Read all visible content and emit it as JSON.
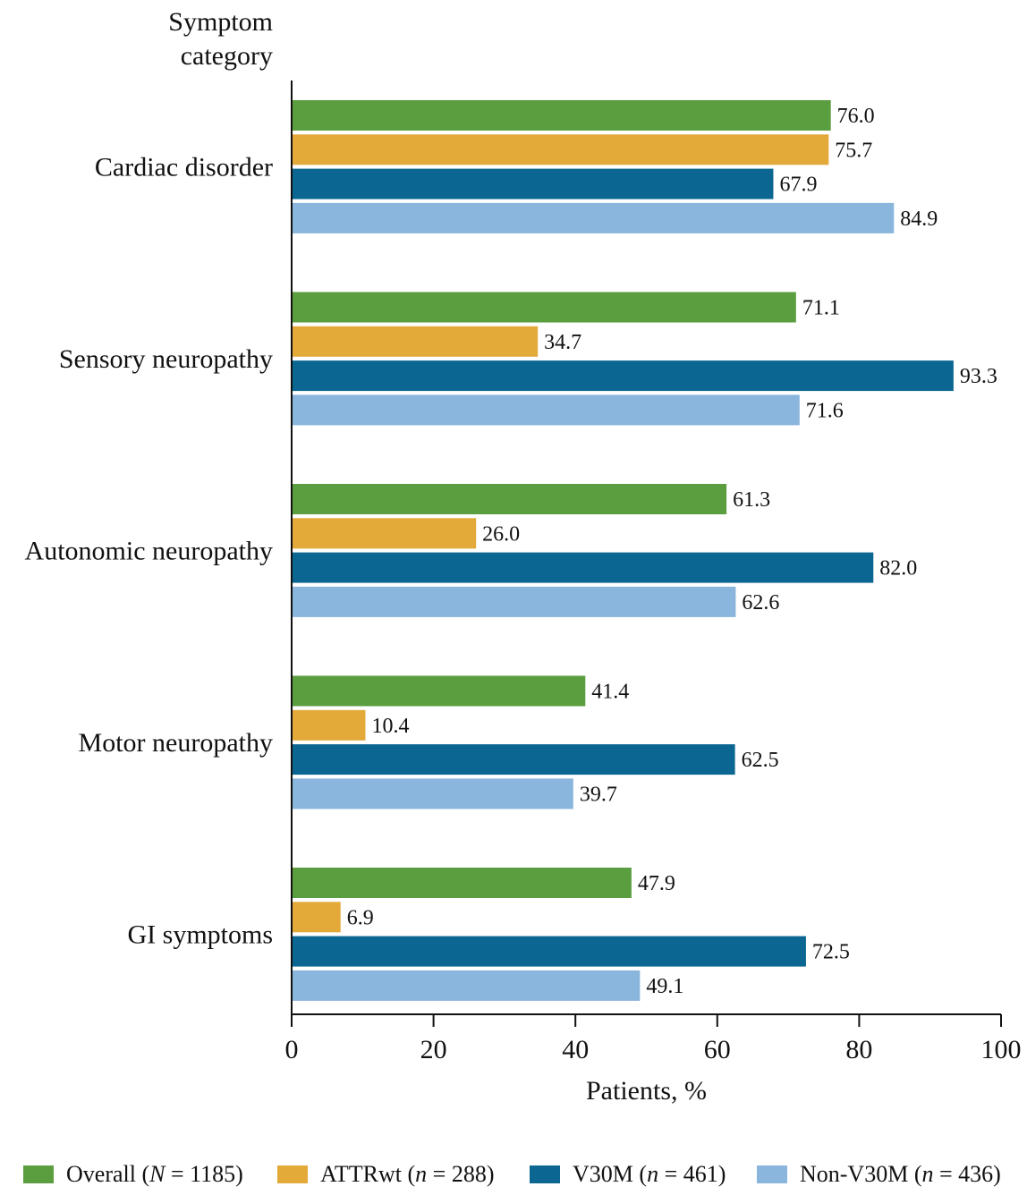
{
  "chart_data": {
    "type": "bar",
    "orientation": "horizontal",
    "y_axis_title": [
      "Symptom",
      "category"
    ],
    "xlabel": "Patients, %",
    "xlim": [
      0,
      100
    ],
    "xticks": [
      "0",
      "20",
      "40",
      "60",
      "80",
      "100"
    ],
    "categories": [
      "Cardiac disorder",
      "Sensory neuropathy",
      "Autonomic neuropathy",
      "Motor neuropathy",
      "GI symptoms"
    ],
    "series": [
      {
        "name": "Overall (N = 1185)",
        "name_parts": [
          "Overall (",
          "N",
          " = 1185)"
        ],
        "color": "#5a9e3f",
        "values": [
          76.0,
          71.1,
          61.3,
          41.4,
          47.9
        ],
        "labels": [
          "76.0",
          "71.1",
          "61.3",
          "41.4",
          "47.9"
        ]
      },
      {
        "name": "ATTRwt (n = 288)",
        "name_parts": [
          "ATTRwt (",
          "n",
          " = 288)"
        ],
        "color": "#e3aa3a",
        "values": [
          75.7,
          34.7,
          26.0,
          10.4,
          6.9
        ],
        "labels": [
          "75.7",
          "34.7",
          "26.0",
          "10.4",
          "6.9"
        ]
      },
      {
        "name": "V30M (n = 461)",
        "name_parts": [
          "V30M (",
          "n",
          " = 461)"
        ],
        "color": "#0b6792",
        "values": [
          67.9,
          93.3,
          82.0,
          62.5,
          72.5
        ],
        "labels": [
          "67.9",
          "93.3",
          "82.0",
          "62.5",
          "72.5"
        ]
      },
      {
        "name": "Non-V30M (n = 436)",
        "name_parts": [
          "Non-V30M (",
          "n",
          " = 436)"
        ],
        "color": "#8ab5dd",
        "values": [
          84.9,
          71.6,
          62.6,
          39.7,
          49.1
        ],
        "labels": [
          "84.9",
          "71.6",
          "62.6",
          "39.7",
          "49.1"
        ]
      }
    ],
    "legend_position": "bottom",
    "grid": false
  }
}
